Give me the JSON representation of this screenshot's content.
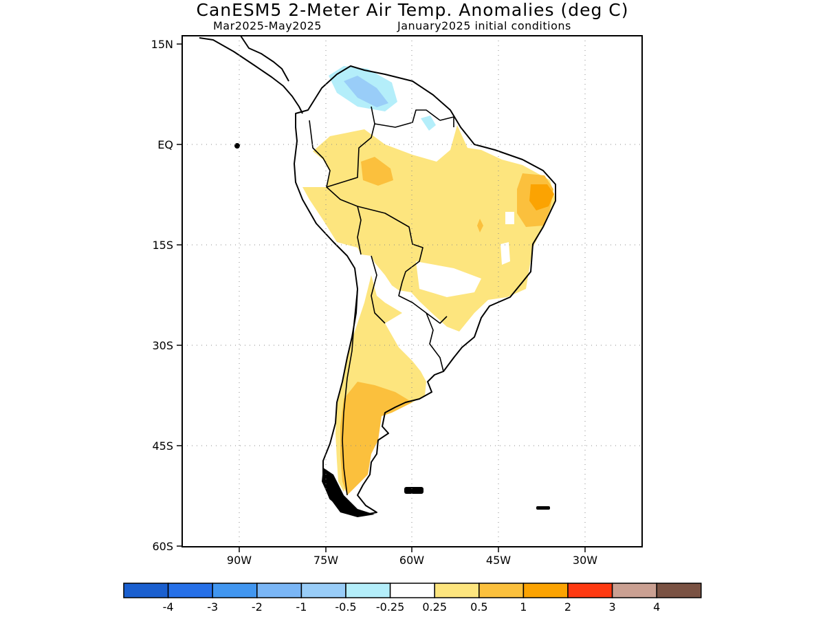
{
  "title": "CanESM5 2-Meter Air Temp. Anomalies (deg C)",
  "period": "Mar2025-May2025",
  "init": "January2025 initial conditions",
  "map": {
    "lat_labels": [
      "15N",
      "EQ",
      "15S",
      "30S",
      "45S",
      "60S"
    ],
    "lon_labels": [
      "90W",
      "75W",
      "60W",
      "45W",
      "30W"
    ],
    "lon_range": [
      -100,
      -20
    ],
    "lat_range": [
      -60,
      15
    ],
    "grid": "dotted"
  },
  "colorbar": {
    "labels": [
      "-4",
      "-3",
      "-2",
      "-1",
      "-0.5",
      "-0.25",
      "0.25",
      "0.5",
      "1",
      "2",
      "3",
      "4"
    ],
    "colors": [
      "#1a5fcf",
      "#2670e8",
      "#4196f0",
      "#7ab6f6",
      "#99cdf8",
      "#b4eefa",
      "#ffffff",
      "#fde57e",
      "#fbc03d",
      "#fba302",
      "#ff3a12",
      "#caa092",
      "#7a5243"
    ]
  },
  "anomaly_regions": [
    {
      "name": "northern Venezuela / Colombia",
      "category": "-0.5 to -0.25"
    },
    {
      "name": "Amazon basin and Brazil",
      "category": "0.25 to 0.5"
    },
    {
      "name": "western Amazon",
      "category": "0.5 to 1"
    },
    {
      "name": "northeast Brazil",
      "category": "0.5 to 1"
    },
    {
      "name": "Pernambuco / Paraiba coast",
      "category": "1 to 2"
    },
    {
      "name": "western Argentina and Chile",
      "category": "0.25 to 0.5"
    },
    {
      "name": "Patagonia",
      "category": "0.5 to 1"
    }
  ]
}
